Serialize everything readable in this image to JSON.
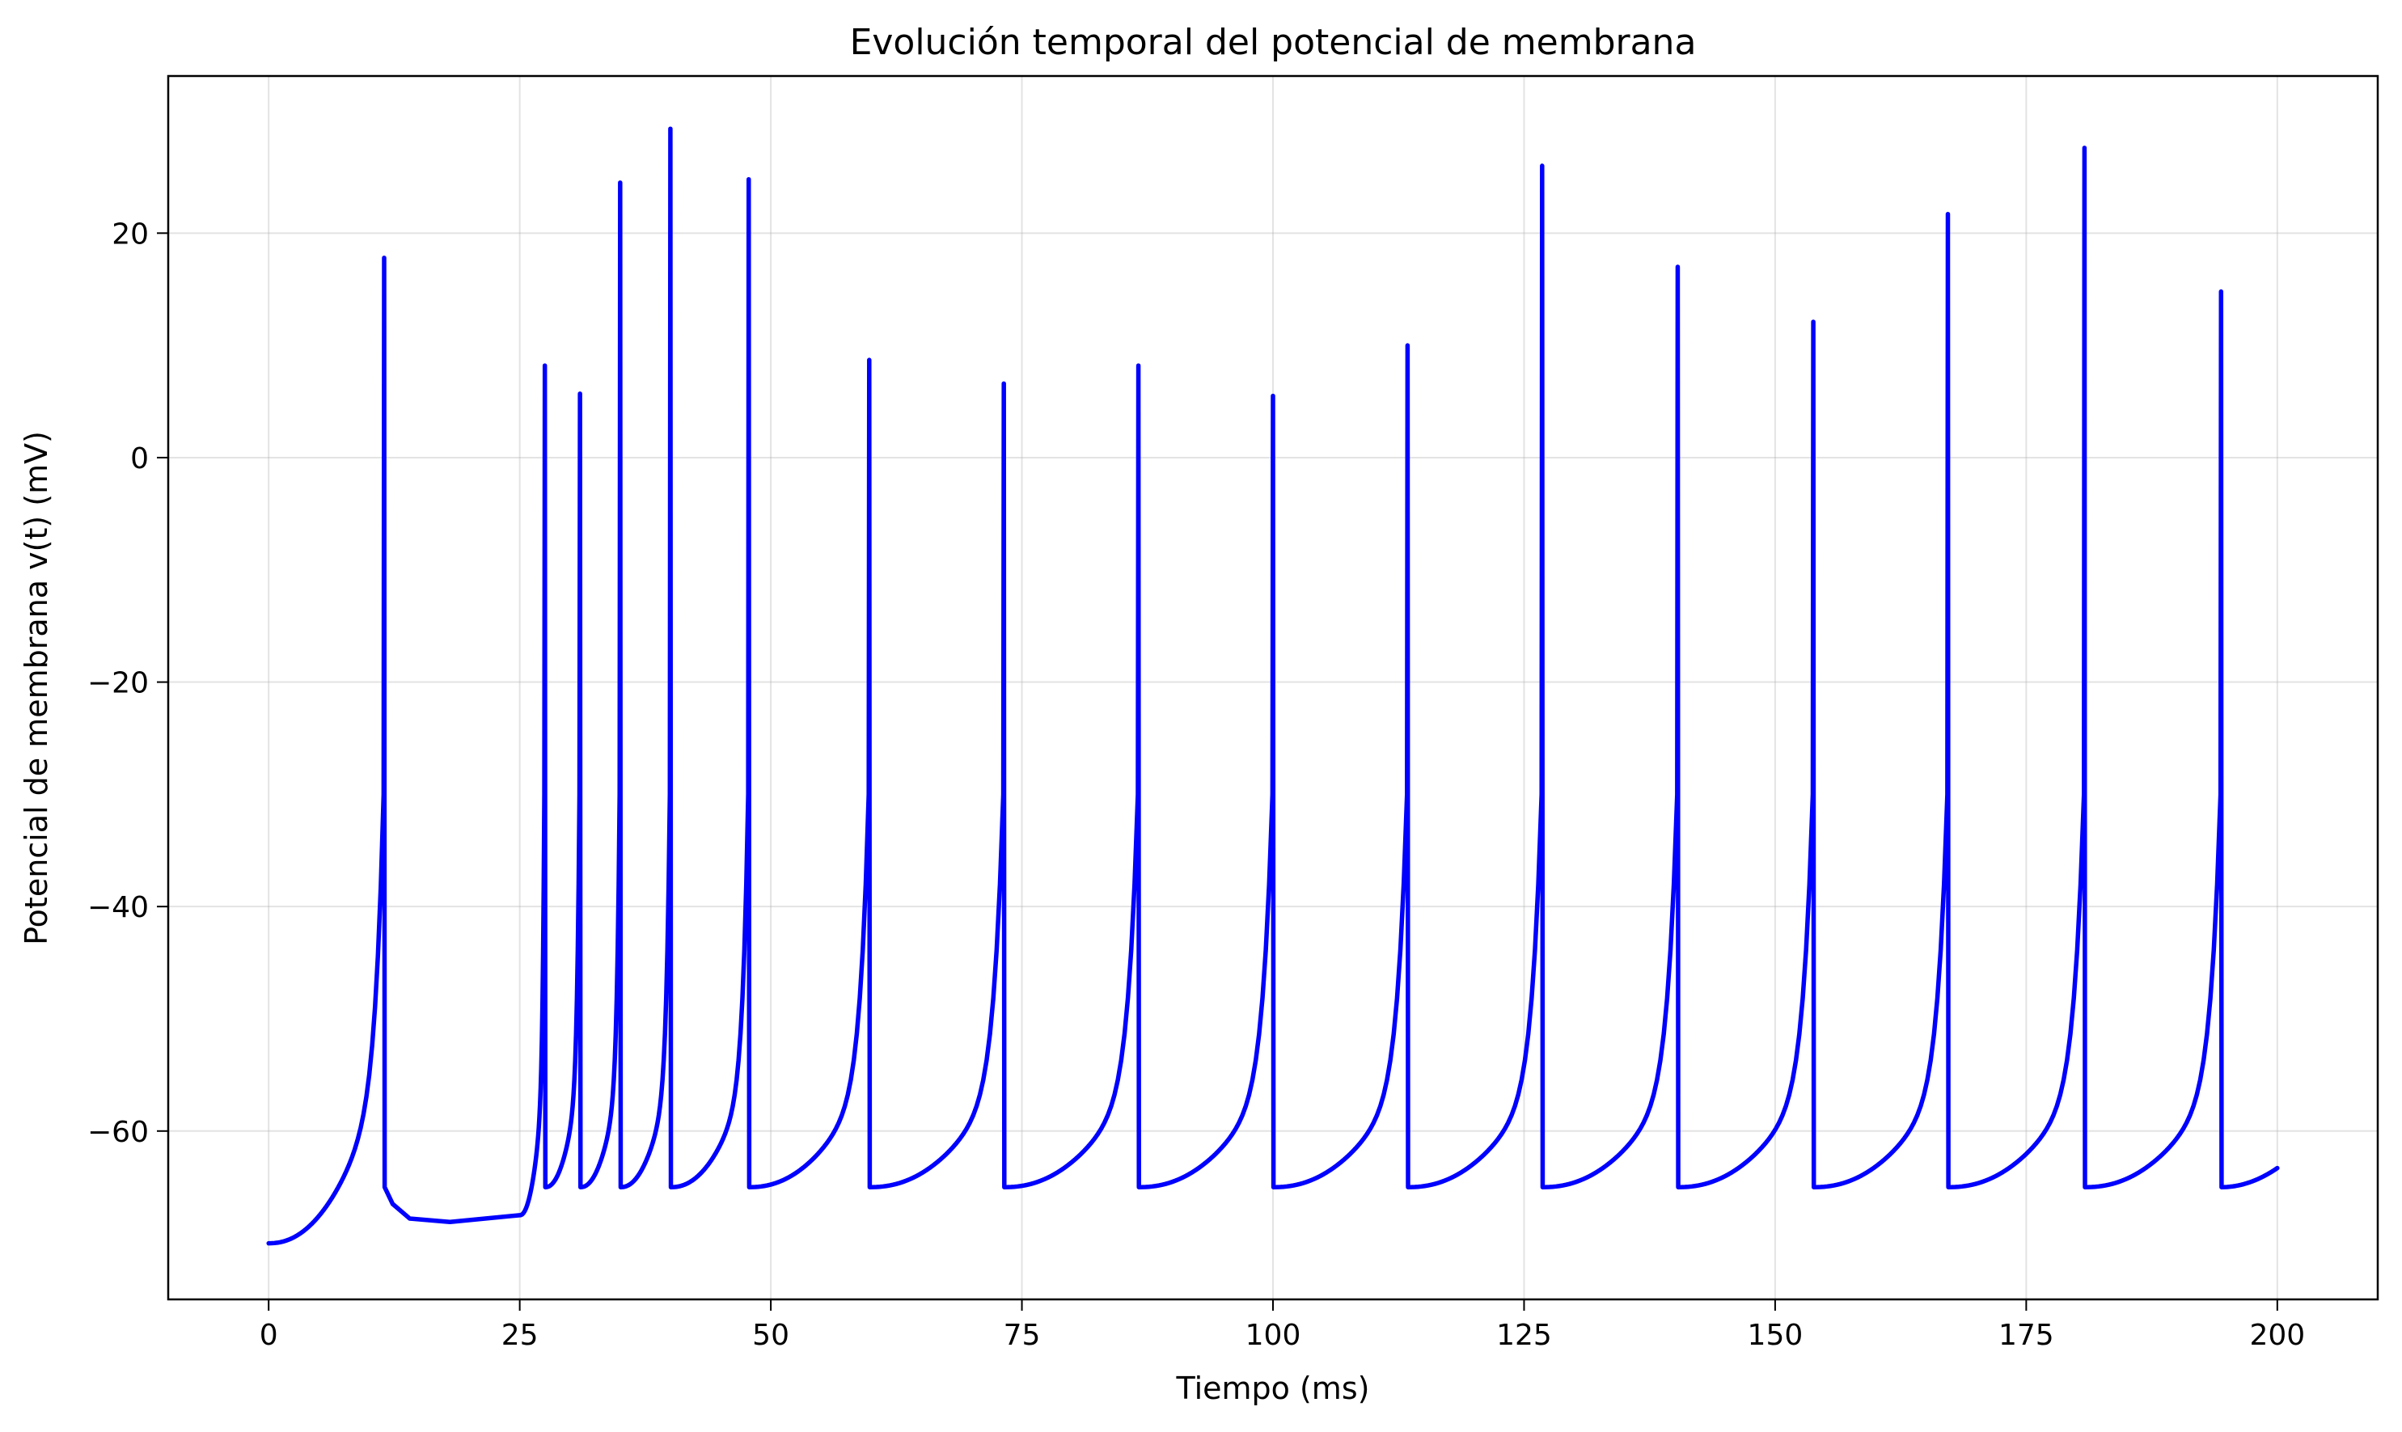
{
  "chart_data": {
    "type": "line",
    "title": "Evolución temporal del potencial de membrana",
    "xlabel": "Tiempo (ms)",
    "ylabel": "Potencial de membrana v(t) (mV)",
    "xlim": [
      -10,
      210
    ],
    "ylim": [
      -75,
      34
    ],
    "x_ticks": [
      0,
      25,
      50,
      75,
      100,
      125,
      150,
      175,
      200
    ],
    "x_tick_labels": [
      "0",
      "25",
      "50",
      "75",
      "100",
      "125",
      "150",
      "175",
      "200"
    ],
    "y_ticks": [
      -60,
      -40,
      -20,
      0,
      20
    ],
    "y_tick_labels": [
      "−60",
      "−40",
      "−20",
      "0",
      "20"
    ],
    "grid": true,
    "series": [
      {
        "color": "#0000ff",
        "start": {
          "t": 0,
          "v": -70
        },
        "reset_v": -65,
        "spikes": [
          {
            "t": 11.5,
            "peak": 17.8
          },
          {
            "t": 27.5,
            "peak": 8.2
          },
          {
            "t": 31.0,
            "peak": 5.7
          },
          {
            "t": 35.0,
            "peak": 24.5
          },
          {
            "t": 40.0,
            "peak": 29.3
          },
          {
            "t": 47.8,
            "peak": 24.8
          },
          {
            "t": 59.8,
            "peak": 8.7
          },
          {
            "t": 73.2,
            "peak": 6.6
          },
          {
            "t": 86.6,
            "peak": 8.2
          },
          {
            "t": 100.0,
            "peak": 5.5
          },
          {
            "t": 113.4,
            "peak": 10.0
          },
          {
            "t": 126.8,
            "peak": 26.0
          },
          {
            "t": 140.3,
            "peak": 17.0
          },
          {
            "t": 153.8,
            "peak": 12.1
          },
          {
            "t": 167.2,
            "peak": 21.7
          },
          {
            "t": 180.8,
            "peak": 27.6
          },
          {
            "t": 194.4,
            "peak": 14.8
          }
        ],
        "end": {
          "t": 200,
          "v": -63.3
        }
      }
    ]
  }
}
